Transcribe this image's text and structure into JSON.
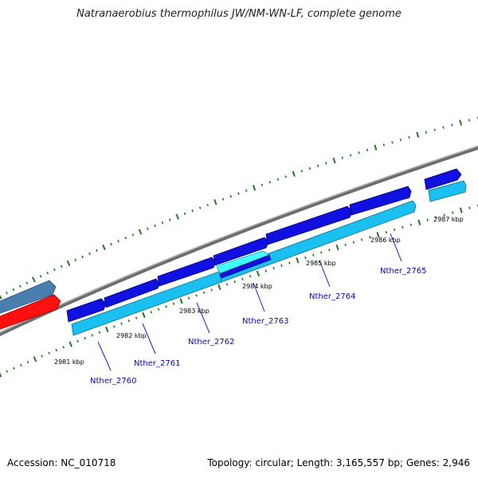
{
  "title": "Natranaerobius thermophilus JW/NM-WN-LF, complete genome",
  "accession": "Accession: NC_010718",
  "summary": "Topology: circular; Length: 3,165,557 bp; Genes: 2,946",
  "colors": {
    "backbone": "#7a7a7a",
    "ticks": "#1e7a1e",
    "cds_forward": "#1010e0",
    "cds_reverse": "#19c0f0",
    "selected_highlight": "#40ffff",
    "grey_feature": "#4a7eae",
    "red_feature": "#ff1010",
    "label_line": "#1a1ad0"
  },
  "kbp_labels": [
    {
      "id": "2981",
      "text": "2981 kbp"
    },
    {
      "id": "2982",
      "text": "2982 kbp"
    },
    {
      "id": "2983",
      "text": "2983 kbp"
    },
    {
      "id": "2984",
      "text": "2984 kbp"
    },
    {
      "id": "2985",
      "text": "2985 kbp"
    },
    {
      "id": "2986",
      "text": "2986 kbp"
    },
    {
      "id": "2987",
      "text": "2987 kbp"
    }
  ],
  "genes": [
    {
      "id": "2760",
      "label": "Nther_2760"
    },
    {
      "id": "2761",
      "label": "Nther_2761"
    },
    {
      "id": "2762",
      "label": "Nther_2762"
    },
    {
      "id": "2763",
      "label": "Nther_2763"
    },
    {
      "id": "2764",
      "label": "Nther_2764"
    },
    {
      "id": "2765",
      "label": "Nther_2765"
    }
  ]
}
